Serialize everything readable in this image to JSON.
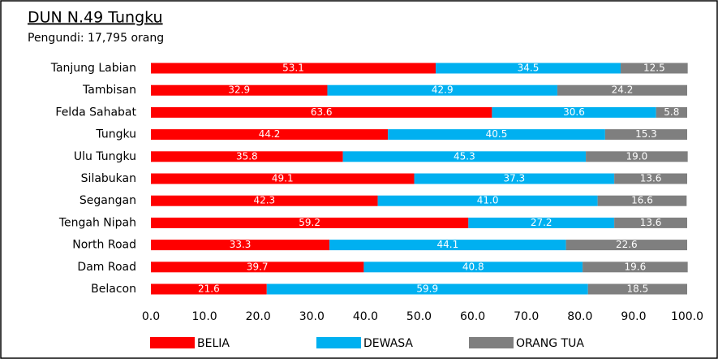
{
  "chart_data": {
    "type": "stacked_barh",
    "title": "DUN N.49 Tungku",
    "subtitle": "Pengundi: 17,795 orang",
    "categories": [
      "Tanjung Labian",
      "Tambisan",
      "Felda Sahabat",
      "Tungku",
      "Ulu Tungku",
      "Silabukan",
      "Segangan",
      "Tengah Nipah",
      "North Road",
      "Dam Road",
      "Belacon"
    ],
    "series": [
      {
        "name": "BELIA",
        "color": "#ff0000",
        "values": [
          53.1,
          32.9,
          63.6,
          44.2,
          35.8,
          49.1,
          42.3,
          59.2,
          33.3,
          39.7,
          21.6
        ],
        "value_labels": [
          "53.1",
          "32.9",
          "63.6",
          "44.2",
          "35.8",
          "49.1",
          "42.3",
          "59.2",
          "33.3",
          "39.7",
          "21.6"
        ]
      },
      {
        "name": "DEWASA",
        "color": "#00b0f0",
        "values": [
          34.5,
          42.9,
          30.6,
          40.5,
          45.3,
          37.3,
          41.0,
          27.2,
          44.1,
          40.8,
          59.9
        ],
        "value_labels": [
          "34.5",
          "42.9",
          "30.6",
          "40.5",
          "45.3",
          "37.3",
          "41.0",
          "27.2",
          "44.1",
          "40.8",
          "59.9"
        ]
      },
      {
        "name": "ORANG TUA",
        "color": "#7f7f7f",
        "values": [
          12.5,
          24.2,
          5.8,
          15.3,
          19.0,
          13.6,
          16.6,
          13.6,
          22.6,
          19.6,
          18.5
        ],
        "value_labels": [
          "12.5",
          "24.2",
          "5.8",
          "15.3",
          "19.0",
          "13.6",
          "16.6",
          "13.6",
          "22.6",
          "19.6",
          "18.5"
        ]
      }
    ],
    "xlim": [
      0,
      100
    ],
    "xticks": [
      {
        "value": 0,
        "label": "0.0"
      },
      {
        "value": 10,
        "label": "10.0"
      },
      {
        "value": 20,
        "label": "20.0"
      },
      {
        "value": 30,
        "label": "30.0"
      },
      {
        "value": 40,
        "label": "40.0"
      },
      {
        "value": 50,
        "label": "50.0"
      },
      {
        "value": 60,
        "label": "60.0"
      },
      {
        "value": 70,
        "label": "70.0"
      },
      {
        "value": 80,
        "label": "80.0"
      },
      {
        "value": 90,
        "label": "90.0"
      },
      {
        "value": 100,
        "label": "100.0"
      }
    ],
    "legend": "bottom"
  }
}
